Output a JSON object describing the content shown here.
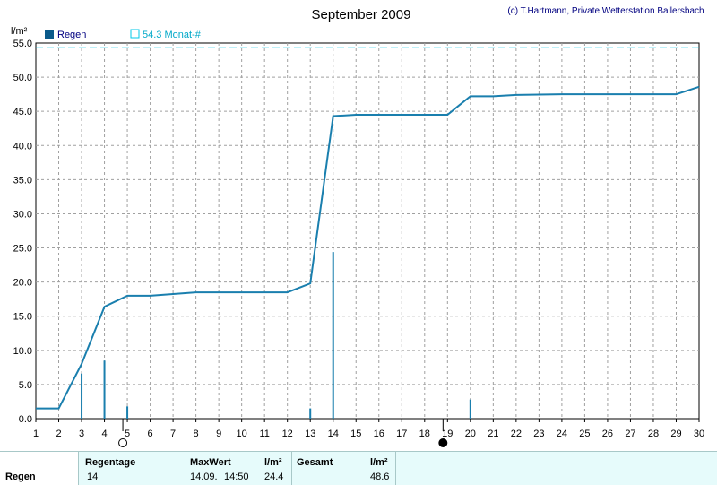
{
  "chart_data": {
    "type": "bar+line",
    "title": "September 2009",
    "copyright": "(c) T.Hartmann, Private Wetterstation Ballersbach",
    "unit": "l/m²",
    "ylim": [
      0,
      55
    ],
    "yticks": [
      "0.0",
      "5.0",
      "10.0",
      "15.0",
      "20.0",
      "25.0",
      "30.0",
      "35.0",
      "40.0",
      "45.0",
      "50.0",
      "55.0"
    ],
    "xlim": [
      1,
      30
    ],
    "xticks": [
      "1",
      "2",
      "3",
      "4",
      "5",
      "6",
      "7",
      "8",
      "9",
      "10",
      "11",
      "12",
      "13",
      "14",
      "15",
      "16",
      "17",
      "18",
      "19",
      "20",
      "21",
      "22",
      "23",
      "24",
      "25",
      "26",
      "27",
      "28",
      "29",
      "30"
    ],
    "grid": true,
    "legend": {
      "rain_label": "Regen",
      "monthly_label": "54.3 Monat-#"
    },
    "reference_line": 54.3,
    "daily_rain": [
      {
        "day": 3,
        "value": 6.6
      },
      {
        "day": 4,
        "value": 8.5
      },
      {
        "day": 5,
        "value": 1.8
      },
      {
        "day": 13,
        "value": 1.5
      },
      {
        "day": 14,
        "value": 24.4
      },
      {
        "day": 20,
        "value": 2.8
      }
    ],
    "cumulative": [
      {
        "x": 1,
        "y": 1.5
      },
      {
        "x": 2,
        "y": 1.5
      },
      {
        "x": 3,
        "y": 8.0
      },
      {
        "x": 4,
        "y": 16.4
      },
      {
        "x": 5,
        "y": 18.0
      },
      {
        "x": 6,
        "y": 18.0
      },
      {
        "x": 8,
        "y": 18.5
      },
      {
        "x": 12,
        "y": 18.5
      },
      {
        "x": 13,
        "y": 19.8
      },
      {
        "x": 14,
        "y": 44.3
      },
      {
        "x": 15,
        "y": 44.5
      },
      {
        "x": 19,
        "y": 44.5
      },
      {
        "x": 20,
        "y": 47.2
      },
      {
        "x": 21,
        "y": 47.2
      },
      {
        "x": 22,
        "y": 47.4
      },
      {
        "x": 24,
        "y": 47.5
      },
      {
        "x": 29,
        "y": 47.5
      },
      {
        "x": 30,
        "y": 48.6
      }
    ],
    "moon_phases": [
      {
        "day": 5,
        "phase": "full",
        "symbol": "○"
      },
      {
        "day": 19,
        "phase": "new",
        "symbol": "●"
      }
    ],
    "colors": {
      "line": "#1a7fae",
      "bar": "#1a7fae",
      "reference": "#00c8e8",
      "grid": "#a0a0a0",
      "legend_box": "#0a5a8a"
    }
  },
  "summary": {
    "row_label": "Regen",
    "regentage_label": "Regentage",
    "regentage_value": "14",
    "maxwert_label": "MaxWert",
    "maxwert_unit": "l/m²",
    "maxwert_date": "14.09.",
    "maxwert_time": "14:50",
    "maxwert_value": "24.4",
    "gesamt_label": "Gesamt",
    "gesamt_unit": "l/m²",
    "gesamt_value": "48.6"
  }
}
